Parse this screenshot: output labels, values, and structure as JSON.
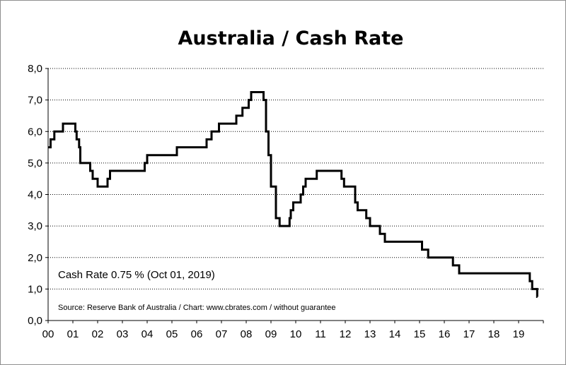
{
  "chart_data": {
    "type": "line",
    "title": "Australia / Cash Rate",
    "xlabel": "",
    "ylabel": "",
    "x_tick_labels": [
      "00",
      "01",
      "02",
      "03",
      "04",
      "05",
      "06",
      "07",
      "08",
      "09",
      "10",
      "11",
      "12",
      "13",
      "14",
      "15",
      "16",
      "17",
      "18",
      "19"
    ],
    "y_tick_labels": [
      "0,0",
      "1,0",
      "2,0",
      "3,0",
      "4,0",
      "5,0",
      "6,0",
      "7,0",
      "8,0"
    ],
    "xlim": [
      2000.0,
      2020.0
    ],
    "ylim": [
      0,
      8
    ],
    "grid": "horizontal dotted",
    "line_color": "#000000",
    "annotation": "Cash Rate 0.75 % (Oct 01, 2019)",
    "source_note": "Source: Reserve Bank of Australia / Chart: www.cbrates.com  / without  guarantee",
    "series": [
      {
        "step": "after",
        "points": [
          [
            2000.0,
            5.5
          ],
          [
            2000.1,
            5.75
          ],
          [
            2000.25,
            6.0
          ],
          [
            2000.6,
            6.25
          ],
          [
            2001.1,
            6.0
          ],
          [
            2001.15,
            5.75
          ],
          [
            2001.25,
            5.5
          ],
          [
            2001.3,
            5.0
          ],
          [
            2001.7,
            4.75
          ],
          [
            2001.8,
            4.5
          ],
          [
            2002.0,
            4.25
          ],
          [
            2002.4,
            4.5
          ],
          [
            2002.5,
            4.75
          ],
          [
            2003.9,
            5.0
          ],
          [
            2004.0,
            5.25
          ],
          [
            2005.2,
            5.5
          ],
          [
            2006.4,
            5.75
          ],
          [
            2006.6,
            6.0
          ],
          [
            2006.9,
            6.25
          ],
          [
            2007.6,
            6.5
          ],
          [
            2007.85,
            6.75
          ],
          [
            2008.1,
            7.0
          ],
          [
            2008.2,
            7.25
          ],
          [
            2008.7,
            7.0
          ],
          [
            2008.8,
            6.0
          ],
          [
            2008.9,
            5.25
          ],
          [
            2009.0,
            4.25
          ],
          [
            2009.2,
            3.25
          ],
          [
            2009.35,
            3.0
          ],
          [
            2009.75,
            3.25
          ],
          [
            2009.8,
            3.5
          ],
          [
            2009.9,
            3.75
          ],
          [
            2010.2,
            4.0
          ],
          [
            2010.3,
            4.25
          ],
          [
            2010.4,
            4.5
          ],
          [
            2010.85,
            4.75
          ],
          [
            2011.85,
            4.5
          ],
          [
            2011.95,
            4.25
          ],
          [
            2012.4,
            3.75
          ],
          [
            2012.5,
            3.5
          ],
          [
            2012.85,
            3.25
          ],
          [
            2013.0,
            3.0
          ],
          [
            2013.4,
            2.75
          ],
          [
            2013.6,
            2.5
          ],
          [
            2015.1,
            2.25
          ],
          [
            2015.35,
            2.0
          ],
          [
            2016.35,
            1.75
          ],
          [
            2016.6,
            1.5
          ],
          [
            2019.45,
            1.25
          ],
          [
            2019.55,
            1.0
          ],
          [
            2019.75,
            0.75
          ],
          [
            2019.76,
            0.75
          ]
        ]
      }
    ]
  }
}
